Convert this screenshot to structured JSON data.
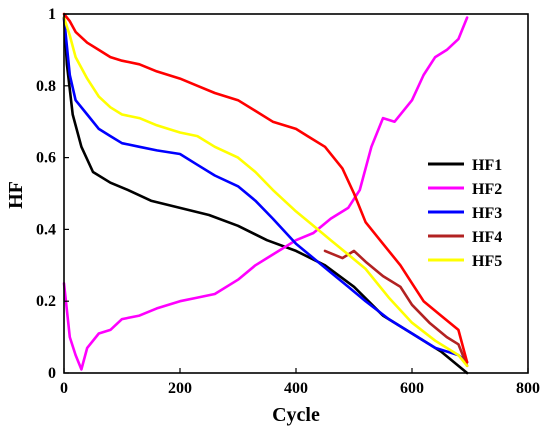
{
  "chart_data": {
    "type": "line",
    "title": "",
    "xlabel": "Cycle",
    "ylabel": "HF",
    "xlim": [
      0,
      800
    ],
    "ylim": [
      0,
      1
    ],
    "xticks": [
      0,
      200,
      400,
      600,
      800
    ],
    "yticks": [
      0,
      0.2,
      0.4,
      0.6,
      0.8,
      1
    ],
    "grid": false,
    "legend_position": "right",
    "series": [
      {
        "name": "HF1",
        "color": "#000000",
        "x": [
          0,
          5,
          15,
          30,
          50,
          80,
          110,
          150,
          200,
          250,
          300,
          350,
          400,
          450,
          500,
          550,
          600,
          650,
          695
        ],
        "y": [
          0.99,
          0.86,
          0.72,
          0.63,
          0.56,
          0.53,
          0.51,
          0.48,
          0.46,
          0.44,
          0.41,
          0.37,
          0.34,
          0.3,
          0.24,
          0.16,
          0.11,
          0.06,
          0.0
        ]
      },
      {
        "name": "HF2",
        "color": "#ff00ff",
        "x": [
          0,
          10,
          20,
          30,
          40,
          60,
          80,
          100,
          130,
          160,
          200,
          230,
          260,
          300,
          330,
          350,
          380,
          400,
          430,
          460,
          490,
          510,
          530,
          550,
          570,
          600,
          620,
          640,
          660,
          680,
          695
        ],
        "y": [
          0.25,
          0.1,
          0.05,
          0.01,
          0.07,
          0.11,
          0.12,
          0.15,
          0.16,
          0.18,
          0.2,
          0.21,
          0.22,
          0.26,
          0.3,
          0.32,
          0.35,
          0.37,
          0.39,
          0.43,
          0.46,
          0.51,
          0.63,
          0.71,
          0.7,
          0.76,
          0.83,
          0.88,
          0.9,
          0.93,
          0.99
        ]
      },
      {
        "name": "HF3",
        "color": "#0000ff",
        "x": [
          0,
          10,
          20,
          40,
          60,
          80,
          100,
          130,
          160,
          200,
          230,
          260,
          300,
          330,
          360,
          400,
          430,
          460,
          490,
          520,
          560,
          600,
          640,
          680,
          695
        ],
        "y": [
          0.99,
          0.83,
          0.76,
          0.72,
          0.68,
          0.66,
          0.64,
          0.63,
          0.62,
          0.61,
          0.58,
          0.55,
          0.52,
          0.48,
          0.43,
          0.36,
          0.32,
          0.28,
          0.24,
          0.2,
          0.15,
          0.11,
          0.07,
          0.05,
          0.03
        ]
      },
      {
        "name": "HF4",
        "color": "#b22222",
        "x": [
          450,
          480,
          500,
          520,
          550,
          580,
          600,
          630,
          660,
          680,
          695
        ],
        "y": [
          0.34,
          0.32,
          0.34,
          0.31,
          0.27,
          0.24,
          0.19,
          0.14,
          0.1,
          0.08,
          0.02
        ]
      },
      {
        "name": "HF5",
        "color": "#ffff00",
        "x": [
          0,
          10,
          20,
          40,
          60,
          80,
          100,
          130,
          160,
          200,
          230,
          260,
          300,
          330,
          360,
          400,
          430,
          460,
          490,
          520,
          560,
          600,
          640,
          680,
          695
        ],
        "y": [
          0.99,
          0.94,
          0.88,
          0.82,
          0.77,
          0.74,
          0.72,
          0.71,
          0.69,
          0.67,
          0.66,
          0.63,
          0.6,
          0.56,
          0.51,
          0.45,
          0.41,
          0.37,
          0.33,
          0.29,
          0.21,
          0.14,
          0.09,
          0.05,
          0.02
        ]
      },
      {
        "name": "",
        "color": "#ff0000",
        "x": [
          0,
          10,
          20,
          40,
          60,
          80,
          100,
          130,
          160,
          200,
          230,
          260,
          300,
          330,
          360,
          400,
          420,
          450,
          480,
          500,
          520,
          550,
          580,
          600,
          620,
          650,
          680,
          695
        ],
        "y": [
          1.0,
          0.98,
          0.95,
          0.92,
          0.9,
          0.88,
          0.87,
          0.86,
          0.84,
          0.82,
          0.8,
          0.78,
          0.76,
          0.73,
          0.7,
          0.68,
          0.66,
          0.63,
          0.57,
          0.5,
          0.42,
          0.36,
          0.3,
          0.25,
          0.2,
          0.16,
          0.12,
          0.03
        ]
      }
    ]
  }
}
